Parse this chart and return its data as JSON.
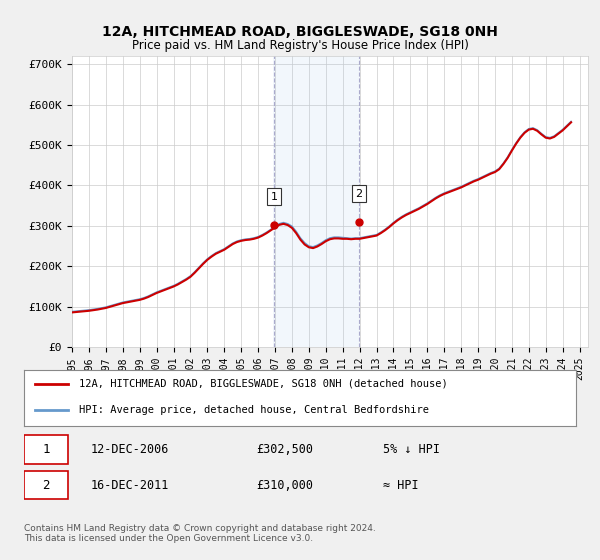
{
  "title": "12A, HITCHMEAD ROAD, BIGGLESWADE, SG18 0NH",
  "subtitle": "Price paid vs. HM Land Registry's House Price Index (HPI)",
  "ylabel_ticks": [
    "£0",
    "£100K",
    "£200K",
    "£300K",
    "£400K",
    "£500K",
    "£600K",
    "£700K"
  ],
  "ytick_vals": [
    0,
    100000,
    200000,
    300000,
    400000,
    500000,
    600000,
    700000
  ],
  "ylim": [
    0,
    720000
  ],
  "xlim_start": 1995.0,
  "xlim_end": 2025.5,
  "background_color": "#f0f0f0",
  "plot_bg_color": "#ffffff",
  "grid_color": "#cccccc",
  "hpi_color": "#6699cc",
  "price_color": "#cc0000",
  "sale1": {
    "date": "2006-12-12",
    "price": 302500,
    "label": "1",
    "x": 2006.95
  },
  "sale2": {
    "date": "2011-12-16",
    "price": 310000,
    "label": "2",
    "x": 2011.96
  },
  "legend_entry1": "12A, HITCHMEAD ROAD, BIGGLESWADE, SG18 0NH (detached house)",
  "legend_entry2": "HPI: Average price, detached house, Central Bedfordshire",
  "table_row1": [
    "1",
    "12-DEC-2006",
    "£302,500",
    "5% ↓ HPI"
  ],
  "table_row2": [
    "2",
    "16-DEC-2011",
    "£310,000",
    "≈ HPI"
  ],
  "footer": "Contains HM Land Registry data © Crown copyright and database right 2024.\nThis data is licensed under the Open Government Licence v3.0.",
  "hpi_data_x": [
    1995.0,
    1995.25,
    1995.5,
    1995.75,
    1996.0,
    1996.25,
    1996.5,
    1996.75,
    1997.0,
    1997.25,
    1997.5,
    1997.75,
    1998.0,
    1998.25,
    1998.5,
    1998.75,
    1999.0,
    1999.25,
    1999.5,
    1999.75,
    2000.0,
    2000.25,
    2000.5,
    2000.75,
    2001.0,
    2001.25,
    2001.5,
    2001.75,
    2002.0,
    2002.25,
    2002.5,
    2002.75,
    2003.0,
    2003.25,
    2003.5,
    2003.75,
    2004.0,
    2004.25,
    2004.5,
    2004.75,
    2005.0,
    2005.25,
    2005.5,
    2005.75,
    2006.0,
    2006.25,
    2006.5,
    2006.75,
    2007.0,
    2007.25,
    2007.5,
    2007.75,
    2008.0,
    2008.25,
    2008.5,
    2008.75,
    2009.0,
    2009.25,
    2009.5,
    2009.75,
    2010.0,
    2010.25,
    2010.5,
    2010.75,
    2011.0,
    2011.25,
    2011.5,
    2011.75,
    2012.0,
    2012.25,
    2012.5,
    2012.75,
    2013.0,
    2013.25,
    2013.5,
    2013.75,
    2014.0,
    2014.25,
    2014.5,
    2014.75,
    2015.0,
    2015.25,
    2015.5,
    2015.75,
    2016.0,
    2016.25,
    2016.5,
    2016.75,
    2017.0,
    2017.25,
    2017.5,
    2017.75,
    2018.0,
    2018.25,
    2018.5,
    2018.75,
    2019.0,
    2019.25,
    2019.5,
    2019.75,
    2020.0,
    2020.25,
    2020.5,
    2020.75,
    2021.0,
    2021.25,
    2021.5,
    2021.75,
    2022.0,
    2022.25,
    2022.5,
    2022.75,
    2023.0,
    2023.25,
    2023.5,
    2023.75,
    2024.0,
    2024.25,
    2024.5
  ],
  "hpi_data_y": [
    88000,
    89000,
    90000,
    91000,
    92000,
    93500,
    95000,
    97000,
    99000,
    102000,
    105000,
    108000,
    111000,
    113000,
    115000,
    117000,
    119000,
    122000,
    126000,
    131000,
    136000,
    140000,
    144000,
    148000,
    152000,
    157000,
    163000,
    169000,
    176000,
    186000,
    197000,
    208000,
    218000,
    226000,
    233000,
    238000,
    243000,
    250000,
    257000,
    262000,
    265000,
    267000,
    268000,
    270000,
    273000,
    278000,
    284000,
    291000,
    298000,
    305000,
    308000,
    305000,
    299000,
    286000,
    270000,
    258000,
    250000,
    248000,
    252000,
    258000,
    265000,
    270000,
    272000,
    272000,
    271000,
    270000,
    269000,
    270000,
    270000,
    272000,
    274000,
    276000,
    278000,
    284000,
    291000,
    299000,
    308000,
    316000,
    323000,
    329000,
    334000,
    339000,
    344000,
    350000,
    356000,
    363000,
    370000,
    376000,
    381000,
    385000,
    389000,
    393000,
    397000,
    402000,
    407000,
    412000,
    416000,
    421000,
    426000,
    431000,
    435000,
    442000,
    455000,
    470000,
    488000,
    505000,
    520000,
    532000,
    540000,
    542000,
    537000,
    528000,
    520000,
    518000,
    522000,
    530000,
    538000,
    548000,
    558000
  ],
  "price_data_x": [
    1995.0,
    1995.25,
    1995.5,
    1995.75,
    1996.0,
    1996.25,
    1996.5,
    1996.75,
    1997.0,
    1997.25,
    1997.5,
    1997.75,
    1998.0,
    1998.25,
    1998.5,
    1998.75,
    1999.0,
    1999.25,
    1999.5,
    1999.75,
    2000.0,
    2000.25,
    2000.5,
    2000.75,
    2001.0,
    2001.25,
    2001.5,
    2001.75,
    2002.0,
    2002.25,
    2002.5,
    2002.75,
    2003.0,
    2003.25,
    2003.5,
    2003.75,
    2004.0,
    2004.25,
    2004.5,
    2004.75,
    2005.0,
    2005.25,
    2005.5,
    2005.75,
    2006.0,
    2006.25,
    2006.5,
    2006.75,
    2007.0,
    2007.25,
    2007.5,
    2007.75,
    2008.0,
    2008.25,
    2008.5,
    2008.75,
    2009.0,
    2009.25,
    2009.5,
    2009.75,
    2010.0,
    2010.25,
    2010.5,
    2010.75,
    2011.0,
    2011.25,
    2011.5,
    2011.75,
    2012.0,
    2012.25,
    2012.5,
    2012.75,
    2013.0,
    2013.25,
    2013.5,
    2013.75,
    2014.0,
    2014.25,
    2014.5,
    2014.75,
    2015.0,
    2015.25,
    2015.5,
    2015.75,
    2016.0,
    2016.25,
    2016.5,
    2016.75,
    2017.0,
    2017.25,
    2017.5,
    2017.75,
    2018.0,
    2018.25,
    2018.5,
    2018.75,
    2019.0,
    2019.25,
    2019.5,
    2019.75,
    2020.0,
    2020.25,
    2020.5,
    2020.75,
    2021.0,
    2021.25,
    2021.5,
    2021.75,
    2022.0,
    2022.25,
    2022.5,
    2022.75,
    2023.0,
    2023.25,
    2023.5,
    2023.75,
    2024.0,
    2024.25,
    2024.5
  ],
  "price_data_y": [
    86000,
    87000,
    88000,
    89000,
    90000,
    91500,
    93000,
    95000,
    97000,
    100000,
    103000,
    106000,
    109000,
    111000,
    113000,
    115000,
    117000,
    120000,
    124000,
    129000,
    134000,
    138000,
    142000,
    146000,
    150000,
    155000,
    161000,
    167000,
    174000,
    184000,
    195000,
    206000,
    216000,
    224000,
    231000,
    236000,
    241000,
    248000,
    255000,
    260000,
    263000,
    265000,
    266000,
    268000,
    271000,
    276000,
    282000,
    289000,
    296000,
    302500,
    305000,
    302000,
    295000,
    282000,
    266000,
    254000,
    247000,
    245000,
    249000,
    255000,
    262000,
    267000,
    269000,
    269000,
    268000,
    268000,
    267000,
    268000,
    268000,
    270000,
    272000,
    274000,
    276000,
    282000,
    289000,
    297000,
    306000,
    314000,
    321000,
    327000,
    332000,
    337000,
    342000,
    348000,
    354000,
    361000,
    368000,
    374000,
    379000,
    383000,
    387000,
    391000,
    395000,
    400000,
    405000,
    410000,
    414000,
    419000,
    424000,
    429000,
    433000,
    440000,
    453000,
    468000,
    486000,
    503000,
    518000,
    530000,
    538000,
    540000,
    535000,
    526000,
    518000,
    516000,
    520000,
    528000,
    536000,
    546000,
    556000
  ]
}
